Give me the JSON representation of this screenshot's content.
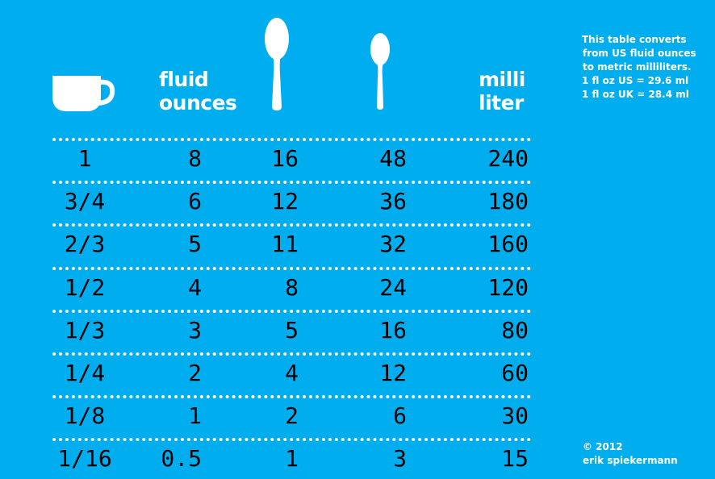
{
  "header": {
    "fluid_line1": "fluid",
    "fluid_line2": "ounces",
    "milli_line1": "milli",
    "milli_line2": "liter"
  },
  "icons": [
    "cup-icon",
    "tablespoon-icon",
    "teaspoon-icon"
  ],
  "note": [
    "This table converts",
    "from US fluid ounces",
    "to metric milliliters.",
    "1 fl oz US = 29.6 ml",
    "1 fl oz UK = 28.4 ml"
  ],
  "copyright": [
    "© 2012",
    "erik spiekermann"
  ],
  "rows": [
    [
      "1",
      "8",
      "16",
      "48",
      "240"
    ],
    [
      "3/4",
      "6",
      "12",
      "36",
      "180"
    ],
    [
      "2/3",
      "5",
      "11",
      "32",
      "160"
    ],
    [
      "1/2",
      "4",
      "8",
      "24",
      "120"
    ],
    [
      "1/3",
      "3",
      "5",
      "16",
      "80"
    ],
    [
      "1/4",
      "2",
      "4",
      "12",
      "60"
    ],
    [
      "1/8",
      "1",
      "2",
      "6",
      "30"
    ],
    [
      "1/16",
      "0.5",
      "1",
      "3",
      "15"
    ]
  ],
  "colors": {
    "background": "#00aeef",
    "numbers": "#000000",
    "text": "#ffffff"
  }
}
